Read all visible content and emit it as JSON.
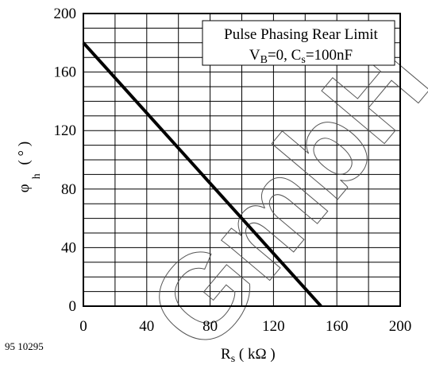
{
  "figure_id": "95 10295",
  "watermark": "GmbH",
  "chart_data": {
    "type": "line",
    "title": "Pulse Phasing Rear Limit",
    "subtitle": {
      "V": "V",
      "B": "B",
      "eq1": "=0, C",
      "s": "s",
      "eq2": "=100nF"
    },
    "xlabel": {
      "main": "R",
      "sub": "s",
      "rest": " ( kΩ )"
    },
    "ylabel": {
      "main": "φ",
      "sub": "h",
      "rest": " ( ° )"
    },
    "xlim": [
      0,
      200
    ],
    "ylim": [
      0,
      200
    ],
    "x_ticks": [
      0,
      40,
      80,
      120,
      160,
      200
    ],
    "y_ticks": [
      0,
      40,
      80,
      120,
      160,
      200
    ],
    "grid": true,
    "series": [
      {
        "x": [
          0,
          150
        ],
        "y": [
          180,
          0
        ]
      }
    ]
  }
}
